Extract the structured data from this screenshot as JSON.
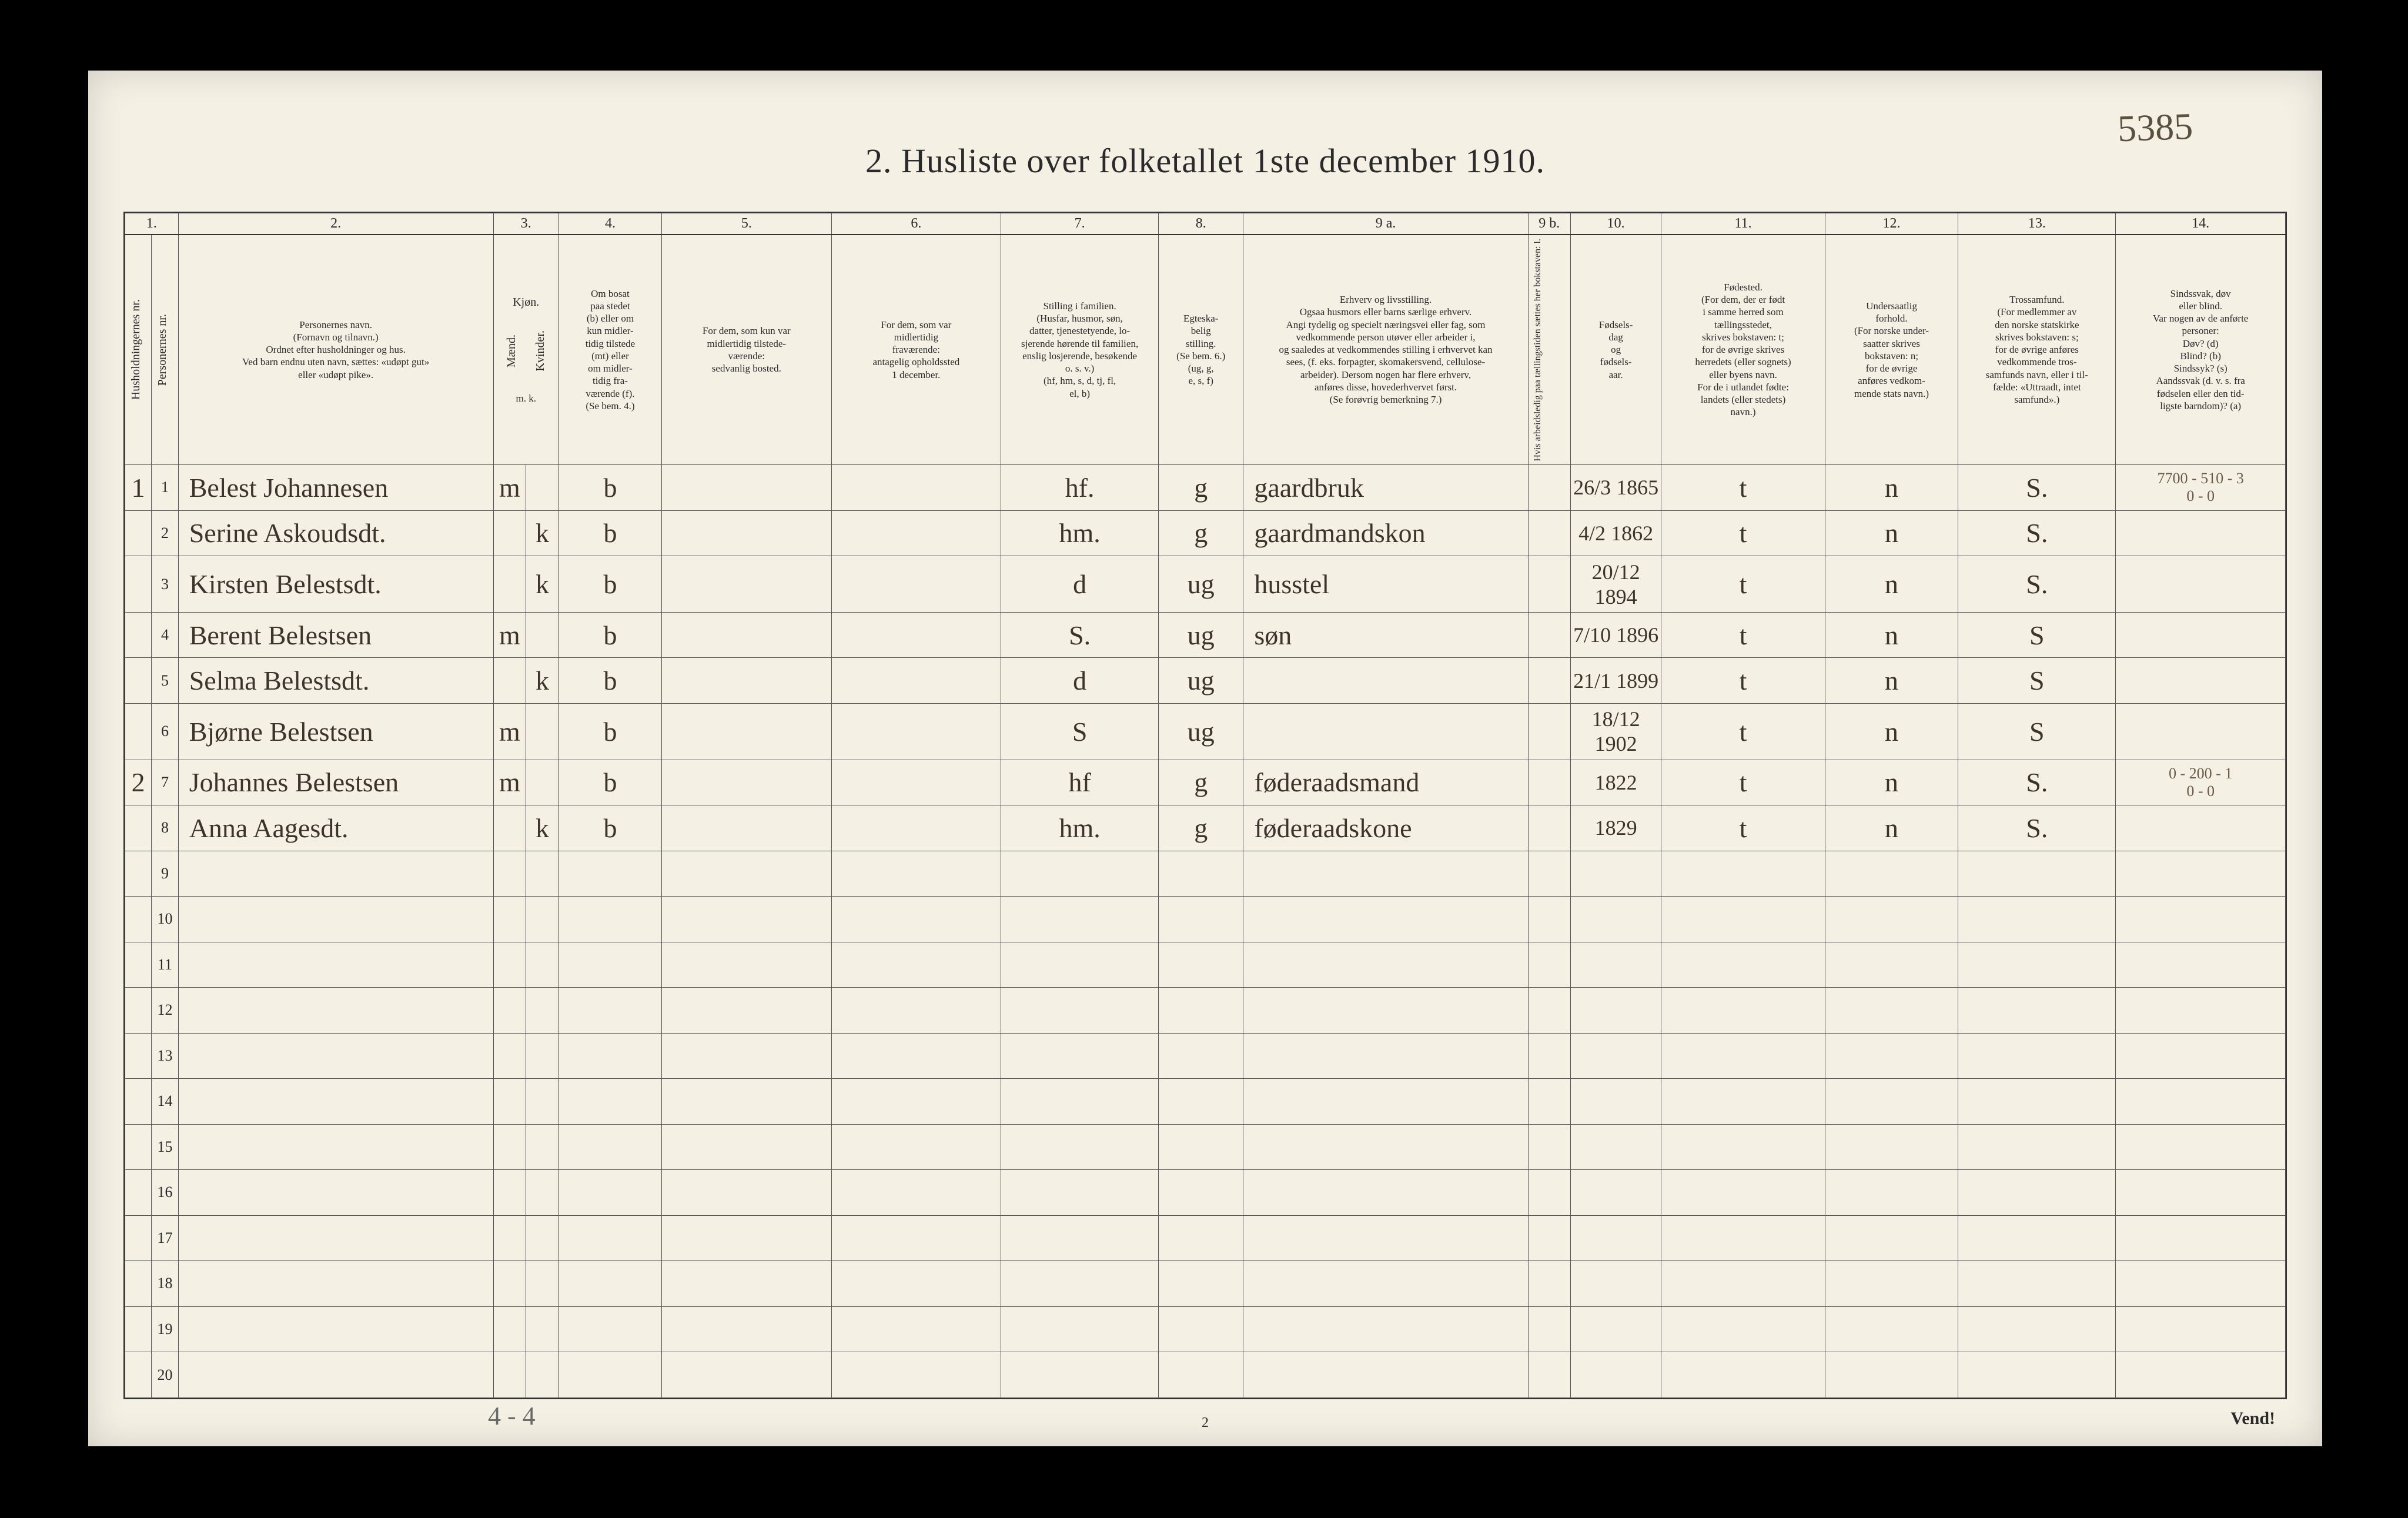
{
  "page": {
    "title": "2.  Husliste over folketallet 1ste december 1910.",
    "handwritten_corner": "5385",
    "footer_tally": "4 - 4",
    "footer_page": "2",
    "vend": "Vend!"
  },
  "colors": {
    "paper": "#f4f0e4",
    "border": "#333333",
    "ink": "#2a2a2a",
    "hand_ink": "#3a342a",
    "pencil": "#6a6a6a"
  },
  "column_numbers": [
    "1.",
    "2.",
    "3.",
    "4.",
    "5.",
    "6.",
    "7.",
    "8.",
    "9 a.",
    "9 b.",
    "10.",
    "11.",
    "12.",
    "13.",
    "14."
  ],
  "headers": {
    "c1a": "Husholdningernes nr.",
    "c1b": "Personernes nr.",
    "c2": "Personernes navn.\n(Fornavn og tilnavn.)\nOrdnet efter husholdninger og hus.\nVed barn endnu uten navn, sættes: «udøpt gut»\neller «udøpt pike».",
    "c3": "Kjøn.",
    "c3a": "Mænd.",
    "c3b": "Kvinder.",
    "c3sub": "m.  k.",
    "c4": "Om bosat\npaa stedet\n(b) eller om\nkun midler-\ntidig tilstede\n(mt) eller\nom midler-\ntidig fra-\nværende (f).\n(Se bem. 4.)",
    "c5": "For dem, som kun var\nmidlertidig tilstede-\nværende:\nsedvanlig bosted.",
    "c6": "For dem, som var\nmidlertidig\nfraværende:\nantagelig opholdssted\n1 december.",
    "c7": "Stilling i familien.\n(Husfar, husmor, søn,\ndatter, tjenestetyende, lo-\nsjerende hørende til familien,\nenslig losjerende, besøkende\no. s. v.)\n(hf, hm, s, d, tj, fl,\nel, b)",
    "c8": "Egteska-\nbelig\nstilling.\n(Se bem. 6.)\n(ug, g,\ne, s, f)",
    "c9a": "Erhverv og livsstilling.\nOgsaa husmors eller barns særlige erhverv.\nAngi tydelig og specielt næringsvei eller fag, som\nvedkommende person utøver eller arbeider i,\nog saaledes at vedkommendes stilling i erhvervet kan\nsees, (f. eks. forpagter, skomakersvend, cellulose-\narbeider). Dersom nogen har flere erhverv,\nanføres disse, hovederhvervet først.\n(Se forøvrig bemerkning 7.)",
    "c9b": "Hvis arbeidsledig\npaa tællingstiden sættes\nher bokstaven: l.",
    "c10": "Fødsels-\ndag\nog\nfødsels-\naar.",
    "c11": "Fødested.\n(For dem, der er født\ni samme herred som\ntællingsstedet,\nskrives bokstaven: t;\nfor de øvrige skrives\nherredets (eller sognets)\neller byens navn.\nFor de i utlandet fødte:\nlandets (eller stedets)\nnavn.)",
    "c12": "Undersaatlig\nforhold.\n(For norske under-\nsaatter skrives\nbokstaven: n;\nfor de øvrige\nanføres vedkom-\nmende stats navn.)",
    "c13": "Trossamfund.\n(For medlemmer av\nden norske statskirke\nskrives bokstaven: s;\nfor de øvrige anføres\nvedkommende tros-\nsamfunds navn, eller i til-\nfælde: «Uttraadt, intet\nsamfund».)",
    "c14": "Sindssvak, døv\neller blind.\nVar nogen av de anførte\npersoner:\nDøv?        (d)\nBlind?      (b)\nSindssyk?  (s)\nAandssvak (d. v. s. fra\nfødselen eller den tid-\nligste barndom)?  (a)"
  },
  "rows": [
    {
      "hh": "1",
      "pn": "1",
      "name": "Belest Johannesen",
      "sex_m": "m",
      "sex_k": "",
      "c4": "b",
      "c5": "",
      "c6": "",
      "c7": "hf.",
      "c8": "g",
      "c9a": "gaardbruk",
      "c9b": "",
      "c10": "26/3 1865",
      "c11": "t",
      "c12": "n",
      "c13": "S.",
      "c14_note": "7700 - 510 - 3\n0 - 0"
    },
    {
      "hh": "",
      "pn": "2",
      "name": "Serine Askoudsdt.",
      "sex_m": "",
      "sex_k": "k",
      "c4": "b",
      "c5": "",
      "c6": "",
      "c7": "hm.",
      "c8": "g",
      "c9a": "gaardmandskon",
      "c9b": "",
      "c10": "4/2 1862",
      "c11": "t",
      "c12": "n",
      "c13": "S.",
      "c14_note": ""
    },
    {
      "hh": "",
      "pn": "3",
      "name": "Kirsten Belestsdt.",
      "sex_m": "",
      "sex_k": "k",
      "c4": "b",
      "c5": "",
      "c6": "",
      "c7": "d",
      "c8": "ug",
      "c9a": "husstel",
      "c9b": "",
      "c10": "20/12 1894",
      "c11": "t",
      "c12": "n",
      "c13": "S.",
      "c14_note": ""
    },
    {
      "hh": "",
      "pn": "4",
      "name": "Berent Belestsen",
      "sex_m": "m",
      "sex_k": "",
      "c4": "b",
      "c5": "",
      "c6": "",
      "c7": "S.",
      "c8": "ug",
      "c9a": "søn",
      "c9b": "",
      "c10": "7/10 1896",
      "c11": "t",
      "c12": "n",
      "c13": "S",
      "c14_note": ""
    },
    {
      "hh": "",
      "pn": "5",
      "name": "Selma Belestsdt.",
      "sex_m": "",
      "sex_k": "k",
      "c4": "b",
      "c5": "",
      "c6": "",
      "c7": "d",
      "c8": "ug",
      "c9a": "",
      "c9b": "",
      "c10": "21/1 1899",
      "c11": "t",
      "c12": "n",
      "c13": "S",
      "c14_note": ""
    },
    {
      "hh": "",
      "pn": "6",
      "name": "Bjørne Belestsen",
      "sex_m": "m",
      "sex_k": "",
      "c4": "b",
      "c5": "",
      "c6": "",
      "c7": "S",
      "c8": "ug",
      "c9a": "",
      "c9b": "",
      "c10": "18/12 1902",
      "c11": "t",
      "c12": "n",
      "c13": "S",
      "c14_note": ""
    },
    {
      "hh": "2",
      "pn": "7",
      "name": "Johannes Belestsen",
      "sex_m": "m",
      "sex_k": "",
      "c4": "b",
      "c5": "",
      "c6": "",
      "c7": "hf",
      "c8": "g",
      "c9a": "føderaadsmand",
      "c9b": "",
      "c10": "1822",
      "c11": "t",
      "c12": "n",
      "c13": "S.",
      "c14_note": "0 - 200 - 1\n0 - 0"
    },
    {
      "hh": "",
      "pn": "8",
      "name": "Anna Aagesdt.",
      "sex_m": "",
      "sex_k": "k",
      "c4": "b",
      "c5": "",
      "c6": "",
      "c7": "hm.",
      "c8": "g",
      "c9a": "føderaadskone",
      "c9b": "",
      "c10": "1829",
      "c11": "t",
      "c12": "n",
      "c13": "S.",
      "c14_note": ""
    }
  ],
  "empty_row_labels": [
    "9",
    "10",
    "11",
    "12",
    "13",
    "14",
    "15",
    "16",
    "17",
    "18",
    "19",
    "20"
  ]
}
